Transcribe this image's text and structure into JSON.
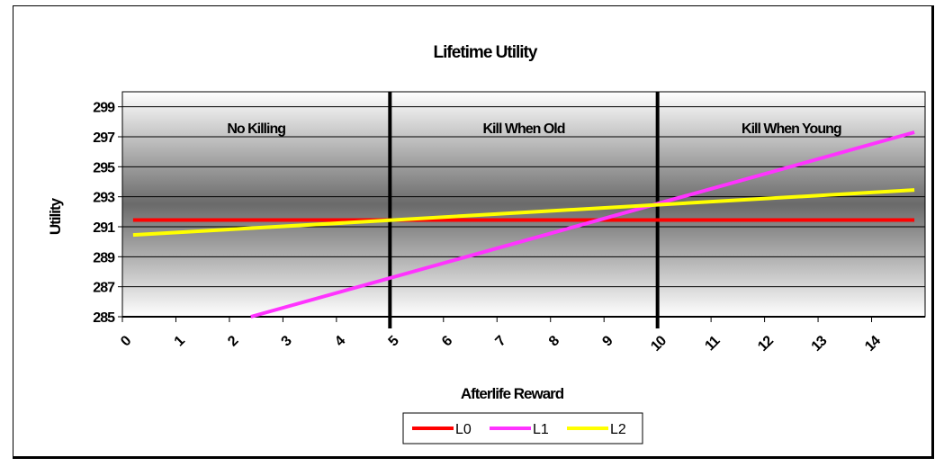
{
  "chart_data": {
    "type": "line",
    "title": "Lifetime Utility",
    "xlabel": "Afterlife Reward",
    "ylabel": "Utility",
    "x_ticks": [
      "0",
      "1",
      "2",
      "3",
      "4",
      "5",
      "6",
      "7",
      "8",
      "9",
      "10",
      "11",
      "12",
      "13",
      "14"
    ],
    "y_ticks": [
      "285",
      "287",
      "289",
      "291",
      "293",
      "295",
      "297",
      "299"
    ],
    "xlim": [
      0,
      15
    ],
    "ylim": [
      285,
      300
    ],
    "grid": true,
    "legend_position": "bottom",
    "regions": [
      {
        "label": "No Killing",
        "x_start": 0,
        "x_end": 5
      },
      {
        "label": "Kill When Old",
        "x_start": 5,
        "x_end": 10
      },
      {
        "label": "Kill When Young",
        "x_start": 10,
        "x_end": 15
      }
    ],
    "region_boundaries": [
      5,
      10
    ],
    "series": [
      {
        "name": "L0",
        "color": "#ff0000",
        "points": [
          [
            0.2,
            291.45
          ],
          [
            14.8,
            291.45
          ]
        ]
      },
      {
        "name": "L1",
        "color": "#ff33ff",
        "points": [
          [
            2.4,
            285.0
          ],
          [
            14.8,
            297.3
          ]
        ]
      },
      {
        "name": "L2",
        "color": "#ffff00",
        "points": [
          [
            0.2,
            290.45
          ],
          [
            14.8,
            293.45
          ]
        ]
      }
    ]
  }
}
